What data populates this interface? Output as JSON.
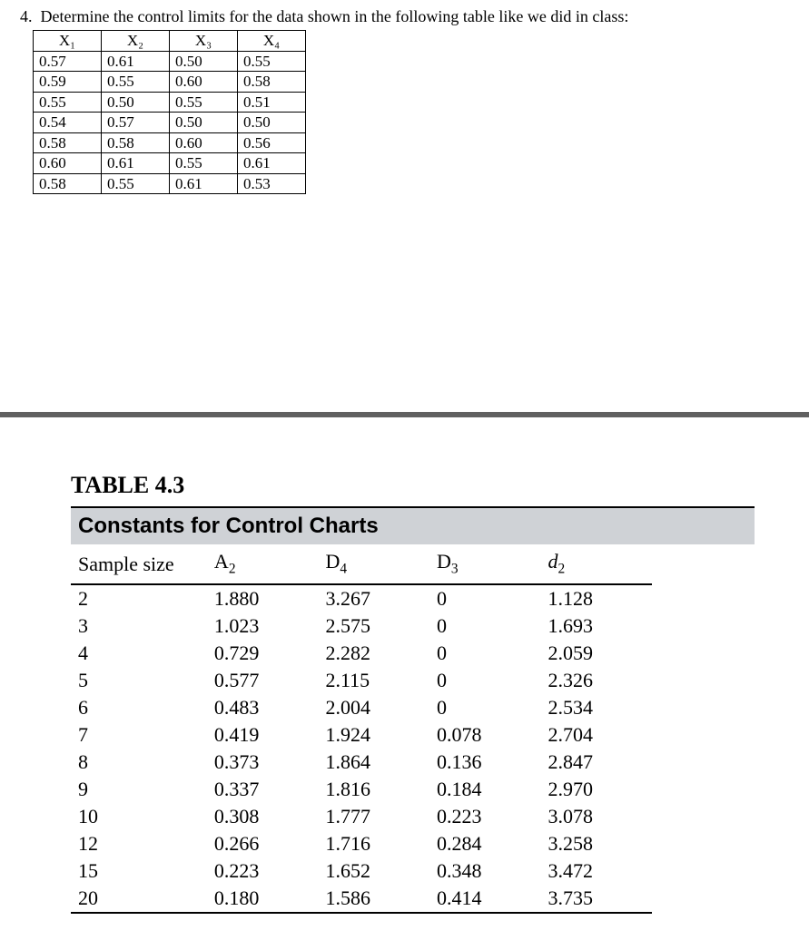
{
  "question": {
    "number": "4.",
    "text": "Determine the control limits for the data shown in the following table like we did in class:"
  },
  "data_table": {
    "headers": [
      "X₁",
      "X₂",
      "X₃",
      "X₄"
    ],
    "rows": [
      [
        "0.57",
        "0.61",
        "0.50",
        "0.55"
      ],
      [
        "0.59",
        "0.55",
        "0.60",
        "0.58"
      ],
      [
        "0.55",
        "0.50",
        "0.55",
        "0.51"
      ],
      [
        "0.54",
        "0.57",
        "0.50",
        "0.50"
      ],
      [
        "0.58",
        "0.58",
        "0.60",
        "0.56"
      ],
      [
        "0.60",
        "0.61",
        "0.55",
        "0.61"
      ],
      [
        "0.58",
        "0.55",
        "0.61",
        "0.53"
      ]
    ]
  },
  "constants_table": {
    "title": "TABLE 4.3",
    "caption": "Constants for Control Charts",
    "columns": {
      "sample": "Sample size",
      "a2": "A",
      "a2_sub": "2",
      "d4": "D",
      "d4_sub": "4",
      "d3": "D",
      "d3_sub": "3",
      "d2": "d",
      "d2_sub": "2"
    },
    "rows": [
      [
        "2",
        "1.880",
        "3.267",
        "0",
        "1.128"
      ],
      [
        "3",
        "1.023",
        "2.575",
        "0",
        "1.693"
      ],
      [
        "4",
        "0.729",
        "2.282",
        "0",
        "2.059"
      ],
      [
        "5",
        "0.577",
        "2.115",
        "0",
        "2.326"
      ],
      [
        "6",
        "0.483",
        "2.004",
        "0",
        "2.534"
      ],
      [
        "7",
        "0.419",
        "1.924",
        "0.078",
        "2.704"
      ],
      [
        "8",
        "0.373",
        "1.864",
        "0.136",
        "2.847"
      ],
      [
        "9",
        "0.337",
        "1.816",
        "0.184",
        "2.970"
      ],
      [
        "10",
        "0.308",
        "1.777",
        "0.223",
        "3.078"
      ],
      [
        "12",
        "0.266",
        "1.716",
        "0.284",
        "3.258"
      ],
      [
        "15",
        "0.223",
        "1.652",
        "0.348",
        "3.472"
      ],
      [
        "20",
        "0.180",
        "1.586",
        "0.414",
        "3.735"
      ]
    ]
  }
}
